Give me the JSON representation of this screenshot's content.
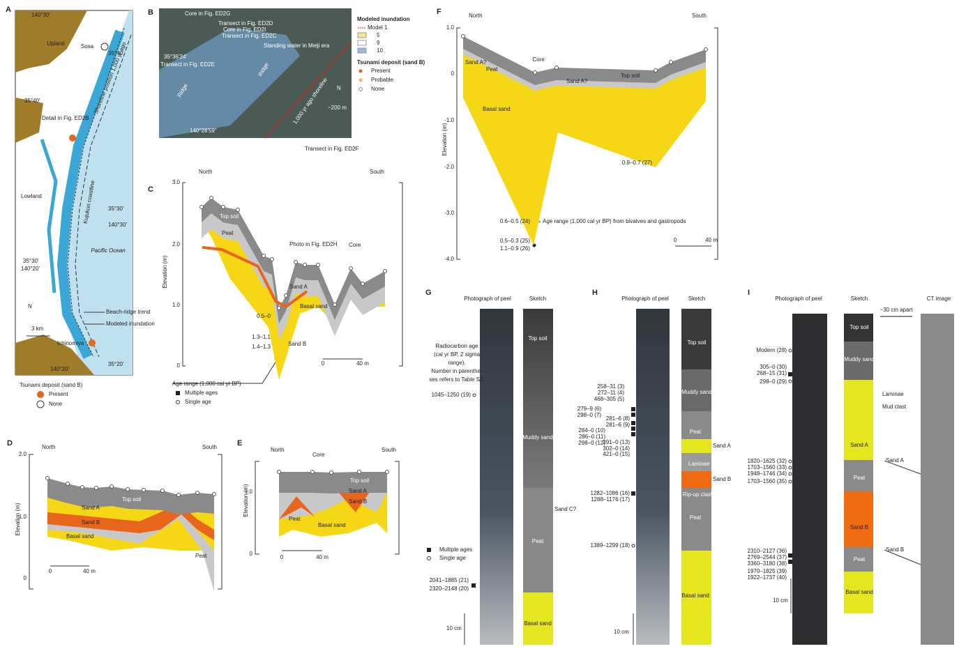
{
  "panels": {
    "A": {
      "letter": "A",
      "texts": [
        "140°30'",
        "Upland",
        "Sosa",
        "35°40'",
        "Shoreline position 1,000 yr ago",
        "35°40'",
        "Detail in Fig. ED2B",
        "Lowland",
        "Kujukuri coastline",
        "35°30'",
        "140°30'",
        "Pacific Ocean",
        "35°30'",
        "140°20'",
        "Beach-ridge trend",
        "Modeled inundation",
        "N",
        "3 km",
        "Ichinomiya",
        "140°20'",
        "35°20'",
        "Tsunami deposit (sand B)",
        "Present",
        "None"
      ]
    },
    "B": {
      "letter": "B",
      "texts": [
        "Core in Fig. ED2G",
        "Transect in Fig. ED2D",
        "Core in Fig. ED2I",
        "Transect in Fig. ED2C",
        "35°36'24'",
        "Transect in Fig. ED2E",
        "Standing water in Meiji era",
        "Ridge",
        "Ridge",
        "140°28'59\"",
        "1,000 yr ago shoreline",
        "N",
        "~200 m",
        "Transect in Fig. ED2F",
        "Modeled inundation",
        "Model 1",
        "5",
        "9",
        "10",
        "Tsunami deposit (sand B)",
        "Present",
        "Probable",
        "None"
      ]
    },
    "C": {
      "letter": "C",
      "texts": [
        "North",
        "South",
        "3.0",
        "2.0",
        "1.0",
        "0",
        "Elevation (m)",
        "Top soil",
        "Peat",
        "Photo in Fig. ED2H",
        "Core",
        "Sand A",
        "Basal sand",
        "0.5–0",
        "1.3–1.1",
        "1.4–1.3",
        "Sand B",
        "0",
        "40 m",
        "Age range (1,000 cal yr BP)",
        "Multiple ages",
        "Single age"
      ]
    },
    "D": {
      "letter": "D",
      "texts": [
        "North",
        "South",
        "2.0",
        "1.0",
        "0",
        "Elevation (m)",
        "Top soil",
        "Sand A",
        "Sand B",
        "Basal sand",
        "Peat",
        "0",
        "40 m"
      ]
    },
    "E": {
      "letter": "E",
      "texts": [
        "North",
        "Core",
        "South",
        "1.0",
        "0",
        "Elevation (m)",
        "Top soil",
        "Sand A",
        "Sand B",
        "Peat",
        "Basal sand",
        "0",
        "40 m"
      ]
    },
    "F": {
      "letter": "F",
      "texts": [
        "North",
        "South",
        "1.0",
        "0",
        "-1.0",
        "-2.0",
        "-3.0",
        "-4.0",
        "Elevation (m)",
        "Sand A?",
        "Peat",
        "Core",
        "Top soil",
        "Sand A?",
        "Basal sand",
        "0.9–0.7 (27)",
        "0.6–0.5 (24)",
        "Age range (1,000 cal yr BP) from bivalves and gastropods",
        "0.5–0.3 (25)",
        "1.1–0.9 (26)",
        "0",
        "40 m"
      ]
    },
    "G": {
      "letter": "G",
      "texts": [
        "Photograph of peel",
        "Sketch",
        "Radiocarbon age",
        "(cal yr BP, 2 sigma",
        "range).",
        "Number in parenthe-",
        "ses refers to Table S3.",
        "1045–1250 (19)",
        "Top soil",
        "Muddy sand",
        "Sand C?",
        "Peat",
        "Multiple ages",
        "Single age",
        "2041–1885 (21)",
        "2320–2148 (20)",
        "10 cm",
        "Basal sand"
      ]
    },
    "H": {
      "letter": "H",
      "texts": [
        "Photograph of peel",
        "Sketch",
        "Top soil",
        "258–31 (3)",
        "272–11 (4)",
        "468–305 (5)",
        "Muddy sand",
        "279–9 (6)",
        "298–0 (7)",
        "281–6 (8)",
        "281–6 (9)",
        "284–0 (10)",
        "286–0 (11)",
        "298–0 (12)",
        "Peat",
        "291–0 (13)",
        "302–0 (14)",
        "421–0 (15)",
        "Sand A",
        "Laminae",
        "Sand B",
        "Rip-up clast",
        "1282–1086 (16)",
        "1288–1176 (17)",
        "Peat",
        "1389–1299 (18)",
        "Basal sand",
        "10 cm"
      ]
    },
    "I": {
      "letter": "I",
      "texts": [
        "Photograph of peel",
        "Sketch",
        "CT image",
        "~30 cm apart",
        "Top soil",
        "Modern (28)",
        "Muddy sand",
        "305–0 (30)",
        "268–15 (31)",
        "298–0 (29)",
        "Laminae",
        "Mud clast",
        "Sand A",
        "Sand A",
        "1820–1625 (32)",
        "1703–1560 (33)",
        "1948–1746 (34)",
        "1703–1560 (35)",
        "Peat",
        "Sand B",
        "Sand B",
        "2310–2127 (36)",
        "2769–2544 (37)",
        "3360–3180 (38)",
        "1970–1825 (39)",
        "1922–1737 (40)",
        "Peat",
        "Basal sand",
        "10 cm"
      ]
    }
  }
}
